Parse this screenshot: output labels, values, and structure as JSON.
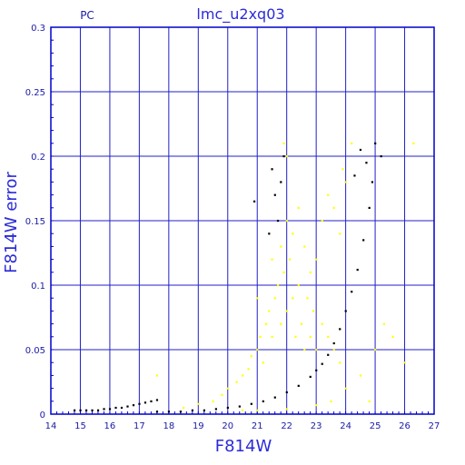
{
  "chart_data": {
    "type": "scatter",
    "title": "lmc_u2xq03",
    "corner_label": "PC",
    "xlabel": "F814W",
    "ylabel": "F814W error",
    "xlim": [
      14,
      27
    ],
    "ylim": [
      0,
      0.3
    ],
    "x_ticks": [
      "14",
      "15",
      "16",
      "17",
      "18",
      "19",
      "20",
      "21",
      "22",
      "23",
      "24",
      "25",
      "26",
      "27"
    ],
    "y_ticks": [
      "0",
      "0.05",
      "0.1",
      "0.15",
      "0.2",
      "0.25",
      "0.3"
    ],
    "grid": true,
    "colors": {
      "axis": "#0000cc",
      "grid": "#2020c8",
      "series_a": "#000000",
      "series_b": "#ffff00",
      "text": "#2b2bd9"
    },
    "series": [
      {
        "color": "#000000",
        "points": [
          [
            14.8,
            0.003
          ],
          [
            15.0,
            0.003
          ],
          [
            15.2,
            0.003
          ],
          [
            15.4,
            0.003
          ],
          [
            15.6,
            0.003
          ],
          [
            15.8,
            0.004
          ],
          [
            16.0,
            0.004
          ],
          [
            16.2,
            0.005
          ],
          [
            16.4,
            0.005
          ],
          [
            16.6,
            0.006
          ],
          [
            16.8,
            0.007
          ],
          [
            17.0,
            0.008
          ],
          [
            17.2,
            0.009
          ],
          [
            17.4,
            0.01
          ],
          [
            17.6,
            0.011
          ],
          [
            17.6,
            0.002
          ],
          [
            18.0,
            0.002
          ],
          [
            18.4,
            0.002
          ],
          [
            18.8,
            0.003
          ],
          [
            19.2,
            0.003
          ],
          [
            19.6,
            0.004
          ],
          [
            20.0,
            0.005
          ],
          [
            20.4,
            0.006
          ],
          [
            20.8,
            0.008
          ],
          [
            21.2,
            0.01
          ],
          [
            21.6,
            0.013
          ],
          [
            22.0,
            0.017
          ],
          [
            22.4,
            0.022
          ],
          [
            22.8,
            0.029
          ],
          [
            23.0,
            0.034
          ],
          [
            23.2,
            0.039
          ],
          [
            23.4,
            0.046
          ],
          [
            23.6,
            0.055
          ],
          [
            23.8,
            0.066
          ],
          [
            24.0,
            0.08
          ],
          [
            24.2,
            0.095
          ],
          [
            24.4,
            0.112
          ],
          [
            24.6,
            0.135
          ],
          [
            24.8,
            0.16
          ],
          [
            24.9,
            0.18
          ],
          [
            25.0,
            0.21
          ],
          [
            21.5,
            0.19
          ],
          [
            21.6,
            0.17
          ],
          [
            21.7,
            0.15
          ],
          [
            21.8,
            0.18
          ],
          [
            21.9,
            0.2
          ],
          [
            21.4,
            0.14
          ],
          [
            20.9,
            0.165
          ],
          [
            24.5,
            0.205
          ],
          [
            24.7,
            0.195
          ],
          [
            24.3,
            0.185
          ],
          [
            25.2,
            0.2
          ]
        ]
      },
      {
        "color": "#ffff00",
        "points": [
          [
            17.6,
            0.03
          ],
          [
            18.5,
            0.005
          ],
          [
            19.0,
            0.008
          ],
          [
            19.5,
            0.01
          ],
          [
            19.8,
            0.015
          ],
          [
            20.0,
            0.02
          ],
          [
            20.3,
            0.025
          ],
          [
            20.5,
            0.03
          ],
          [
            20.7,
            0.035
          ],
          [
            20.8,
            0.045
          ],
          [
            21.0,
            0.05
          ],
          [
            21.1,
            0.06
          ],
          [
            21.2,
            0.04
          ],
          [
            21.3,
            0.07
          ],
          [
            21.4,
            0.08
          ],
          [
            21.5,
            0.06
          ],
          [
            21.6,
            0.09
          ],
          [
            21.7,
            0.1
          ],
          [
            21.8,
            0.07
          ],
          [
            21.9,
            0.11
          ],
          [
            22.0,
            0.08
          ],
          [
            22.1,
            0.12
          ],
          [
            22.2,
            0.09
          ],
          [
            22.3,
            0.06
          ],
          [
            22.4,
            0.1
          ],
          [
            22.5,
            0.07
          ],
          [
            22.6,
            0.05
          ],
          [
            22.7,
            0.09
          ],
          [
            22.8,
            0.06
          ],
          [
            22.9,
            0.08
          ],
          [
            23.0,
            0.05
          ],
          [
            23.2,
            0.07
          ],
          [
            23.4,
            0.06
          ],
          [
            23.6,
            0.05
          ],
          [
            23.8,
            0.04
          ],
          [
            21.0,
            0.09
          ],
          [
            21.5,
            0.12
          ],
          [
            21.8,
            0.13
          ],
          [
            22.0,
            0.15
          ],
          [
            22.2,
            0.14
          ],
          [
            22.4,
            0.16
          ],
          [
            22.6,
            0.13
          ],
          [
            22.8,
            0.11
          ],
          [
            23.0,
            0.12
          ],
          [
            23.2,
            0.15
          ],
          [
            23.4,
            0.17
          ],
          [
            23.6,
            0.16
          ],
          [
            23.8,
            0.14
          ],
          [
            24.0,
            0.18
          ],
          [
            22.0,
            0.2
          ],
          [
            21.9,
            0.21
          ],
          [
            23.9,
            0.19
          ],
          [
            24.2,
            0.21
          ],
          [
            21.0,
            0.003
          ],
          [
            22.0,
            0.004
          ],
          [
            23.0,
            0.007
          ],
          [
            23.5,
            0.01
          ],
          [
            24.0,
            0.02
          ],
          [
            24.5,
            0.03
          ],
          [
            25.0,
            0.05
          ],
          [
            25.3,
            0.07
          ],
          [
            25.6,
            0.06
          ],
          [
            26.0,
            0.04
          ],
          [
            26.3,
            0.21
          ],
          [
            24.8,
            0.01
          ],
          [
            20.5,
            0.003
          ]
        ]
      }
    ]
  }
}
